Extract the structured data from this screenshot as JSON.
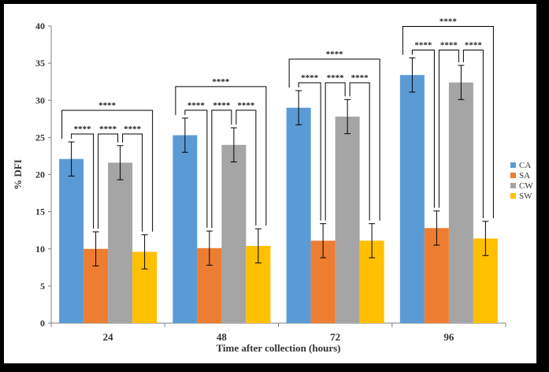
{
  "chart_data": {
    "type": "bar",
    "categories": [
      "24",
      "48",
      "72",
      "96"
    ],
    "series": [
      {
        "name": "CA",
        "color": "#5B9BD5",
        "values": [
          22.1,
          25.3,
          29.0,
          33.4
        ],
        "errors": [
          2.3,
          2.3,
          2.3,
          2.3
        ]
      },
      {
        "name": "SA",
        "color": "#ED7D31",
        "values": [
          10.0,
          10.1,
          11.1,
          12.8
        ],
        "errors": [
          2.3,
          2.3,
          2.3,
          2.3
        ]
      },
      {
        "name": "CW",
        "color": "#A5A5A5",
        "values": [
          21.6,
          24.0,
          27.8,
          32.4
        ],
        "errors": [
          2.3,
          2.3,
          2.3,
          2.3
        ]
      },
      {
        "name": "SW",
        "color": "#FFC000",
        "values": [
          9.6,
          10.4,
          11.1,
          11.4
        ],
        "errors": [
          2.3,
          2.3,
          2.3,
          2.3
        ]
      }
    ],
    "xlabel": "Time after collection (hours)",
    "ylabel": "% DFI",
    "ylim": [
      0,
      40
    ],
    "yticks": [
      "0",
      "5",
      "10",
      "15",
      "20",
      "25",
      "30",
      "35",
      "40"
    ],
    "significance_label": "****",
    "legend_position": "right",
    "grid": false
  }
}
